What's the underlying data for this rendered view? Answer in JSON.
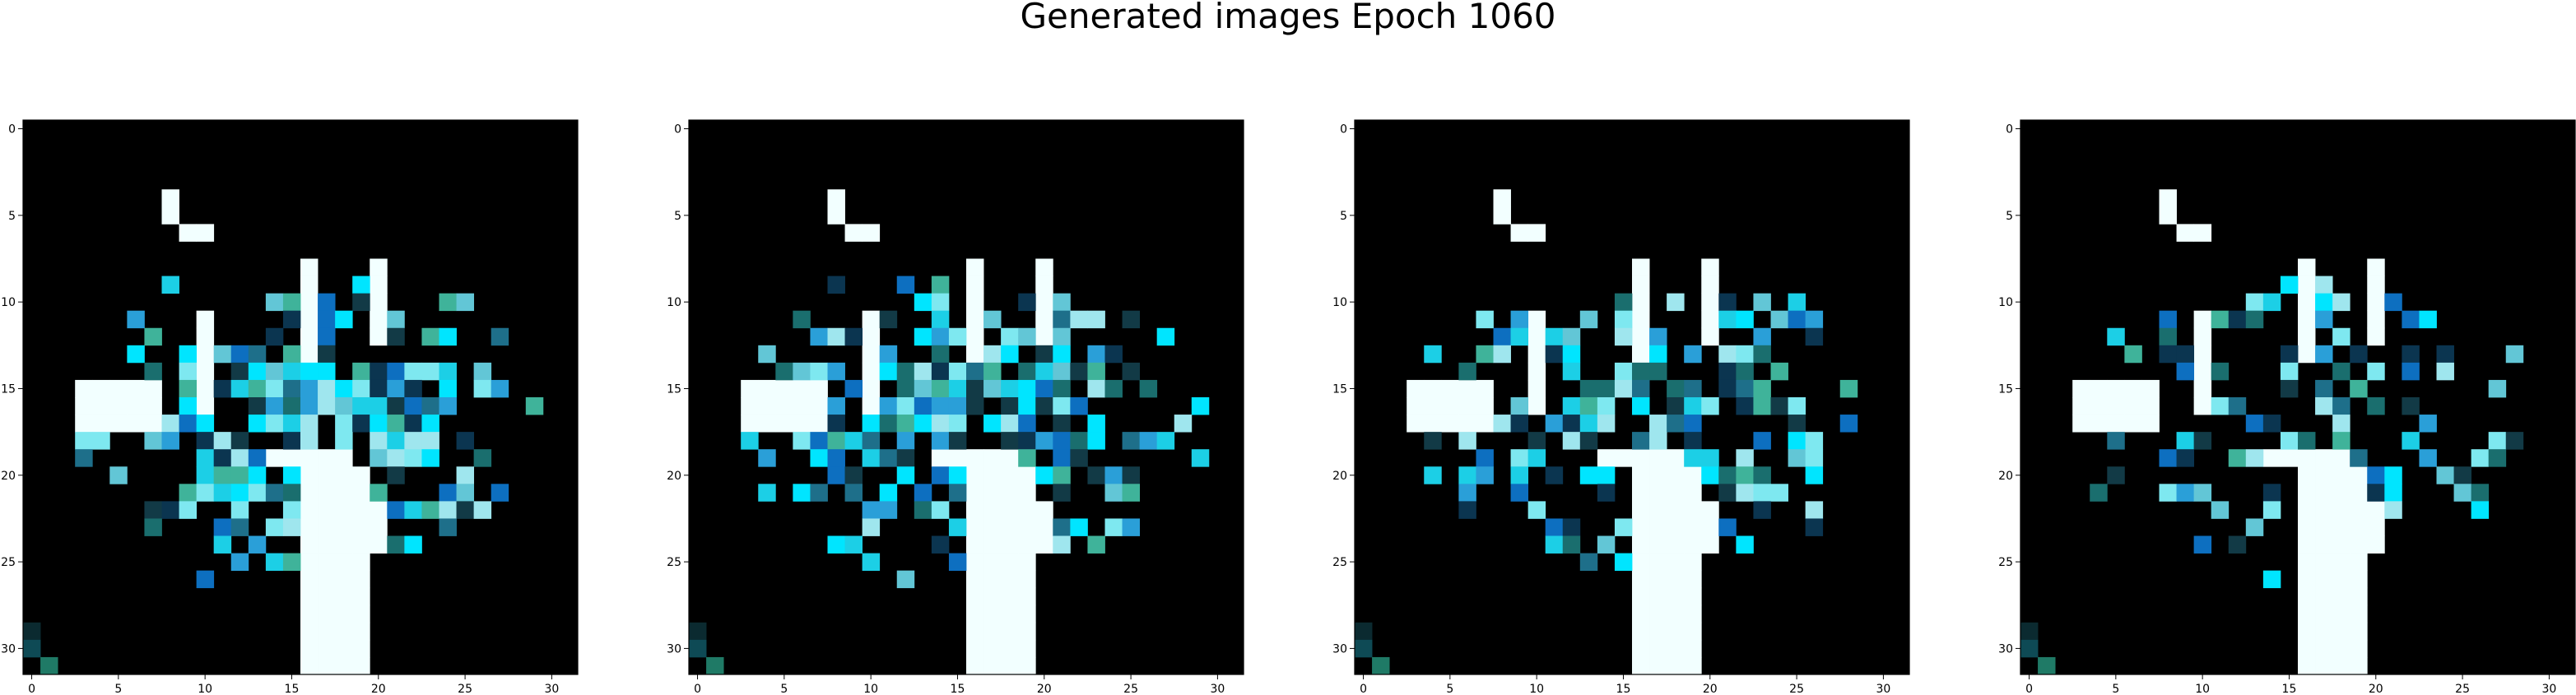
{
  "figure": {
    "title": "Generated images Epoch 1060"
  },
  "axes_common": {
    "x_ticks": [
      "0",
      "5",
      "10",
      "15",
      "20",
      "25",
      "30"
    ],
    "y_ticks": [
      "0",
      "5",
      "10",
      "15",
      "20",
      "25",
      "30"
    ],
    "image_size": 32,
    "background_color": "#000000"
  },
  "panels": [
    {
      "name": "generated-image-1"
    },
    {
      "name": "generated-image-2"
    },
    {
      "name": "generated-image-3"
    },
    {
      "name": "generated-image-4"
    }
  ]
}
